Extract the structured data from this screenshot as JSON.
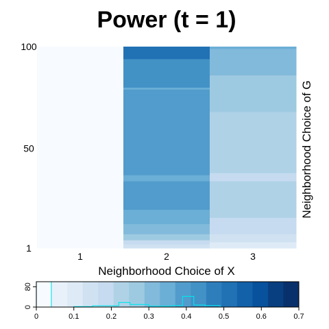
{
  "chart_data": [
    {
      "type": "heatmap",
      "title": "Power (t = 1)",
      "xlabel": "Neighborhood Choice of X",
      "ylabel": "Neighborhood Choice of G",
      "x_categories": [
        "1",
        "2",
        "3"
      ],
      "y_range": [
        1,
        100
      ],
      "y_ticks": [
        "1",
        "50",
        "100"
      ],
      "legend": "bottom",
      "columns": [
        {
          "x": "1",
          "segments": [
            {
              "from": 1,
              "to": 100,
              "value": 0.0
            }
          ]
        },
        {
          "x": "2",
          "segments": [
            {
              "from": 1,
              "to": 3,
              "value": 0.15
            },
            {
              "from": 3,
              "to": 5,
              "value": 0.2
            },
            {
              "from": 5,
              "to": 8,
              "value": 0.25
            },
            {
              "from": 8,
              "to": 13,
              "value": 0.3
            },
            {
              "from": 13,
              "to": 20,
              "value": 0.35
            },
            {
              "from": 20,
              "to": 34,
              "value": 0.38
            },
            {
              "from": 34,
              "to": 37,
              "value": 0.36
            },
            {
              "from": 37,
              "to": 79,
              "value": 0.41
            },
            {
              "from": 79,
              "to": 80,
              "value": 0.36
            },
            {
              "from": 80,
              "to": 87,
              "value": 0.42
            },
            {
              "from": 87,
              "to": 94,
              "value": 0.45
            },
            {
              "from": 94,
              "to": 100,
              "value": 0.5
            }
          ]
        },
        {
          "x": "3",
          "segments": [
            {
              "from": 1,
              "to": 4,
              "value": 0.1
            },
            {
              "from": 4,
              "to": 8,
              "value": 0.15
            },
            {
              "from": 8,
              "to": 16,
              "value": 0.18
            },
            {
              "from": 16,
              "to": 34,
              "value": 0.23
            },
            {
              "from": 34,
              "to": 38,
              "value": 0.2
            },
            {
              "from": 38,
              "to": 68,
              "value": 0.22
            },
            {
              "from": 68,
              "to": 86,
              "value": 0.26
            },
            {
              "from": 86,
              "to": 99,
              "value": 0.3
            },
            {
              "from": 99,
              "to": 100,
              "value": 0.35
            }
          ]
        }
      ]
    },
    {
      "type": "color-key",
      "range": [
        0,
        0.7
      ],
      "x_ticks": [
        "0",
        "0.1",
        "0.2",
        "0.3",
        "0.4",
        "0.5",
        "0.6",
        "0.7"
      ],
      "y_ticks": [
        "0",
        "80"
      ],
      "colors": [
        "#f7fbff",
        "#e8f1fa",
        "#deebf7",
        "#d0e2f2",
        "#c6dbef",
        "#b0d2e7",
        "#9ecae1",
        "#82badb",
        "#6baed6",
        "#519ccc",
        "#4292c6",
        "#2f7ebc",
        "#2171b5",
        "#1361a9",
        "#08519c",
        "#083f80",
        "#08306b"
      ],
      "histogram_color": "#00e5ee",
      "histogram": [
        {
          "from": 0.0,
          "to": 0.04,
          "count": 100
        },
        {
          "from": 0.04,
          "to": 0.1,
          "count": 0
        },
        {
          "from": 0.1,
          "to": 0.15,
          "count": 2
        },
        {
          "from": 0.15,
          "to": 0.22,
          "count": 5
        },
        {
          "from": 0.22,
          "to": 0.25,
          "count": 18
        },
        {
          "from": 0.25,
          "to": 0.3,
          "count": 10
        },
        {
          "from": 0.3,
          "to": 0.36,
          "count": 4
        },
        {
          "from": 0.36,
          "to": 0.39,
          "count": 6
        },
        {
          "from": 0.39,
          "to": 0.42,
          "count": 42
        },
        {
          "from": 0.42,
          "to": 0.45,
          "count": 8
        },
        {
          "from": 0.45,
          "to": 0.49,
          "count": 6
        },
        {
          "from": 0.49,
          "to": 0.7,
          "count": 0
        }
      ]
    }
  ]
}
